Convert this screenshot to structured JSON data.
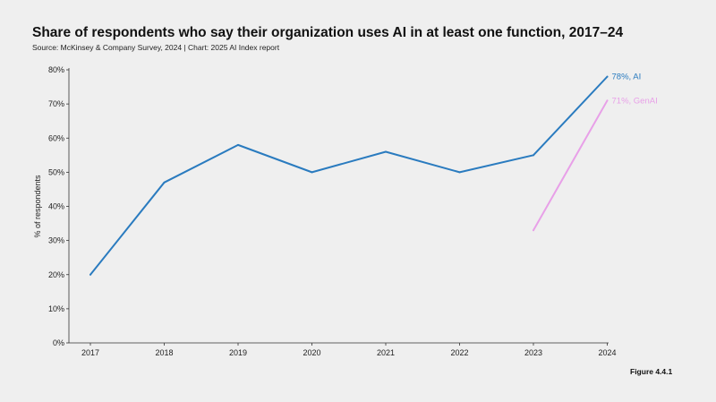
{
  "header": {
    "title": "Share of respondents who say their organization uses AI in at least one function, 2017–24",
    "source": "Source: McKinsey & Company Survey, 2024 | Chart: 2025 AI Index report"
  },
  "footer": {
    "figure": "Figure 4.4.1"
  },
  "chart_data": {
    "type": "line",
    "title": "Share of respondents who say their organization uses AI in at least one function, 2017–24",
    "ylabel": "% of respondents",
    "xlabel": "",
    "ylim": [
      0,
      80
    ],
    "y_ticks": [
      0,
      10,
      20,
      30,
      40,
      50,
      60,
      70,
      80
    ],
    "y_tick_labels": [
      "0%",
      "10%",
      "20%",
      "30%",
      "40%",
      "50%",
      "60%",
      "70%",
      "80%"
    ],
    "categories": [
      "2017",
      "2018",
      "2019",
      "2020",
      "2021",
      "2022",
      "2023",
      "2024"
    ],
    "series": [
      {
        "name": "AI",
        "color": "#2a7bbf",
        "x": [
          "2017",
          "2018",
          "2019",
          "2020",
          "2021",
          "2022",
          "2023",
          "2024"
        ],
        "values": [
          20,
          47,
          58,
          50,
          56,
          50,
          55,
          78
        ],
        "end_label": "78%, AI"
      },
      {
        "name": "GenAI",
        "color": "#e8a0e8",
        "x": [
          "2023",
          "2024"
        ],
        "values": [
          33,
          71
        ],
        "end_label": "71%, GenAI"
      }
    ]
  }
}
